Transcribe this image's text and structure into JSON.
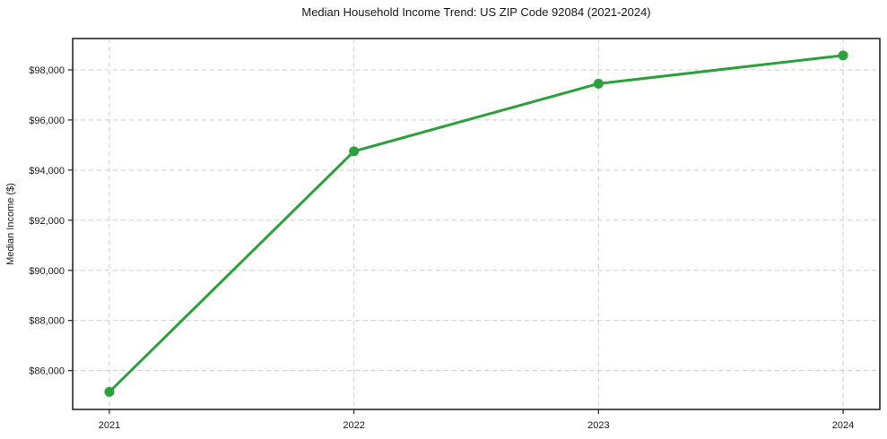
{
  "chart_data": {
    "type": "line",
    "title": "Median Household Income Trend: US ZIP Code 92084 (2021-2024)",
    "xlabel": "",
    "ylabel": "Median Income ($)",
    "categories": [
      "2021",
      "2022",
      "2023",
      "2024"
    ],
    "values": [
      85150,
      94750,
      97450,
      98575
    ],
    "ylim": [
      84450,
      99250
    ],
    "y_ticks": [
      {
        "value": 86000,
        "label": "$86,000"
      },
      {
        "value": 88000,
        "label": "$88,000"
      },
      {
        "value": 90000,
        "label": "$90,000"
      },
      {
        "value": 92000,
        "label": "$92,000"
      },
      {
        "value": 94000,
        "label": "$94,000"
      },
      {
        "value": 96000,
        "label": "$96,000"
      },
      {
        "value": 98000,
        "label": "$98,000"
      }
    ],
    "grid": true,
    "legend_position": "none",
    "marker": "circle",
    "colors": {
      "line": "#2ca03c",
      "grid": "#cccccc",
      "spine": "#262626",
      "text": "#1a1a1a",
      "background": "#ffffff"
    }
  }
}
